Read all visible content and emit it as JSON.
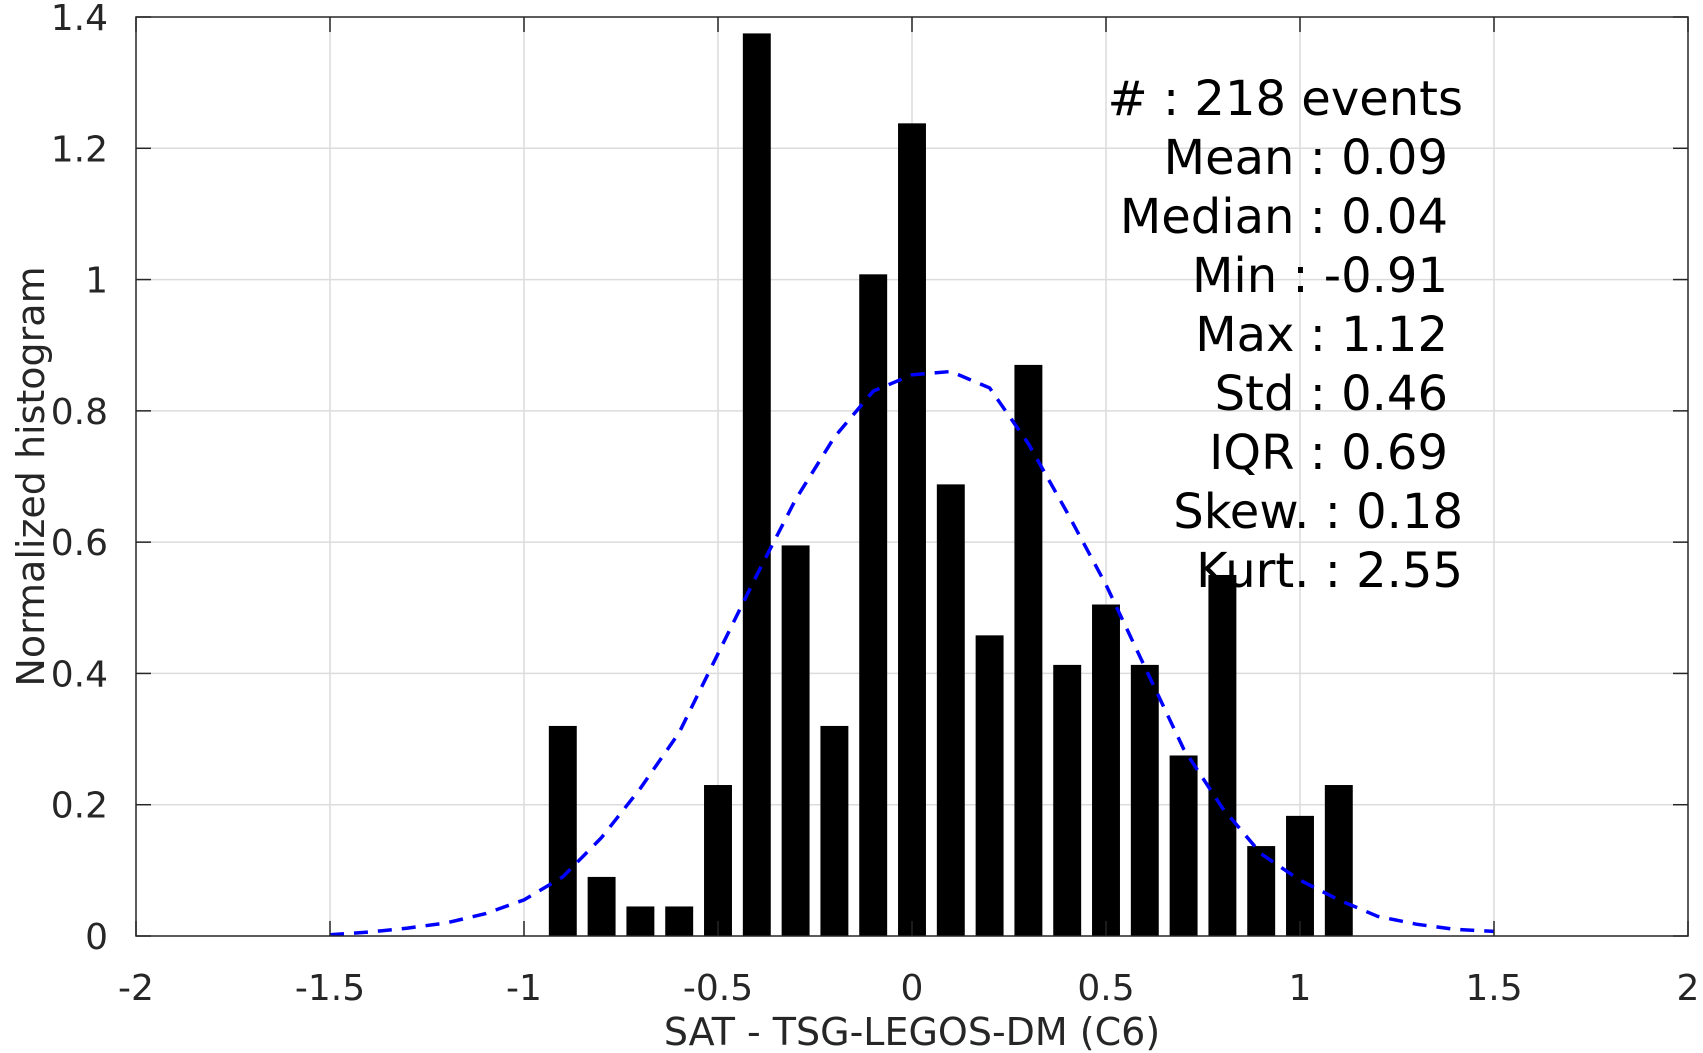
{
  "chart_data": {
    "type": "bar",
    "xlabel": "SAT - TSG-LEGOS-DM (C6)",
    "ylabel": "Normalized histogram",
    "xlim": [
      -2,
      2
    ],
    "ylim": [
      0,
      1.4
    ],
    "xticks": [
      -2,
      -1.5,
      -1,
      -0.5,
      0,
      0.5,
      1,
      1.5,
      2
    ],
    "yticks": [
      0,
      0.2,
      0.4,
      0.6,
      0.8,
      1,
      1.2,
      1.4
    ],
    "xtick_labels": [
      "-2",
      "-1.5",
      "-1",
      "-0.5",
      "0",
      "0.5",
      "1",
      "1.5",
      "2"
    ],
    "ytick_labels": [
      "0",
      "0.2",
      "0.4",
      "0.6",
      "0.8",
      "1",
      "1.2",
      "1.4"
    ],
    "grid": true,
    "bar_color": "#000000",
    "curve_color": "#0000ff",
    "bars": {
      "x": [
        -0.9,
        -0.8,
        -0.7,
        -0.6,
        -0.5,
        -0.4,
        -0.3,
        -0.2,
        -0.1,
        0.0,
        0.1,
        0.2,
        0.3,
        0.4,
        0.5,
        0.6,
        0.7,
        0.8,
        0.9,
        1.0,
        1.1
      ],
      "values": [
        0.32,
        0.09,
        0.045,
        0.045,
        0.23,
        1.375,
        0.595,
        0.32,
        1.008,
        1.238,
        0.688,
        0.458,
        0.87,
        0.413,
        0.505,
        0.413,
        0.275,
        0.55,
        0.137,
        0.183,
        0.23
      ]
    },
    "fit_curve": {
      "style": "dashed",
      "x": [
        -1.5,
        -1.4,
        -1.3,
        -1.2,
        -1.1,
        -1.0,
        -0.9,
        -0.8,
        -0.7,
        -0.6,
        -0.5,
        -0.4,
        -0.3,
        -0.2,
        -0.1,
        0.0,
        0.1,
        0.2,
        0.3,
        0.4,
        0.5,
        0.6,
        0.7,
        0.8,
        0.9,
        1.0,
        1.1,
        1.2,
        1.3,
        1.4,
        1.5
      ],
      "y": [
        0.002,
        0.006,
        0.012,
        0.02,
        0.034,
        0.055,
        0.09,
        0.15,
        0.225,
        0.31,
        0.43,
        0.55,
        0.665,
        0.76,
        0.83,
        0.855,
        0.86,
        0.835,
        0.75,
        0.645,
        0.535,
        0.41,
        0.285,
        0.195,
        0.125,
        0.085,
        0.055,
        0.03,
        0.018,
        0.01,
        0.007
      ]
    },
    "annotations": [
      "#  : 218 events",
      "Mean : 0.09",
      "Median : 0.04",
      "Min : -0.91",
      "Max : 1.12",
      "Std : 0.46",
      "IQR : 0.69",
      "Skew. : 0.18",
      "Kurt. : 2.55"
    ]
  }
}
